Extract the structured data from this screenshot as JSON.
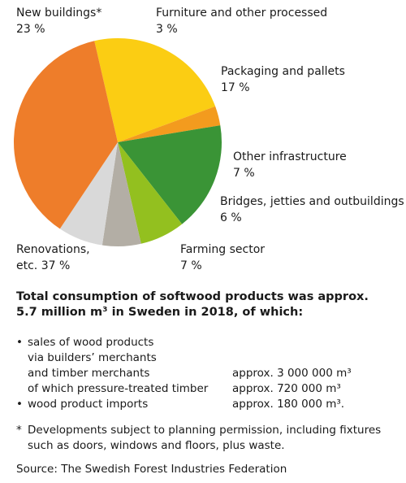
{
  "chart_data": {
    "type": "pie",
    "slices": [
      {
        "label_lines": [
          "New buildings*",
          "23 %"
        ],
        "value": 23,
        "color": "#fbcd13"
      },
      {
        "label_lines": [
          "Furniture and other processed",
          "3 %"
        ],
        "value": 3,
        "color": "#f39b1e"
      },
      {
        "label_lines": [
          "Packaging and pallets",
          "17 %"
        ],
        "value": 17,
        "color": "#3a9436"
      },
      {
        "label_lines": [
          "Other infrastructure",
          "7 %"
        ],
        "value": 7,
        "color": "#93c01f"
      },
      {
        "label_lines": [
          "Bridges, jetties and outbuildings",
          "6 %"
        ],
        "value": 6,
        "color": "#b3aea5"
      },
      {
        "label_lines": [
          "Farming sector",
          "7 %"
        ],
        "value": 7,
        "color": "#d9d9d9"
      },
      {
        "label_lines": [
          "Renovations,",
          "etc. 37 %"
        ],
        "value": 37,
        "color": "#ee7d2a"
      }
    ]
  },
  "summary": {
    "line1": "Total consumption of softwood products was approx.",
    "line2": "5.7 million m³ in Sweden in 2018, of which:"
  },
  "items": [
    {
      "bullet": "•",
      "text": "sales of wood products",
      "amount": ""
    },
    {
      "bullet": "",
      "text": "via builders’ merchants",
      "amount": ""
    },
    {
      "bullet": "",
      "text": "and timber merchants",
      "amount": "approx. 3 000 000 m³"
    },
    {
      "bullet": "",
      "text": "of which pressure-treated timber",
      "amount": "approx. 720 000 m³"
    },
    {
      "bullet": "•",
      "text": "wood product imports",
      "amount": "approx. 180 000 m³."
    }
  ],
  "footnote": {
    "marker": "*",
    "text": "Developments subject to planning permission, including fixtures such as doors, windows and floors, plus waste."
  },
  "source": "Source: The Swedish Forest Industries Federation"
}
